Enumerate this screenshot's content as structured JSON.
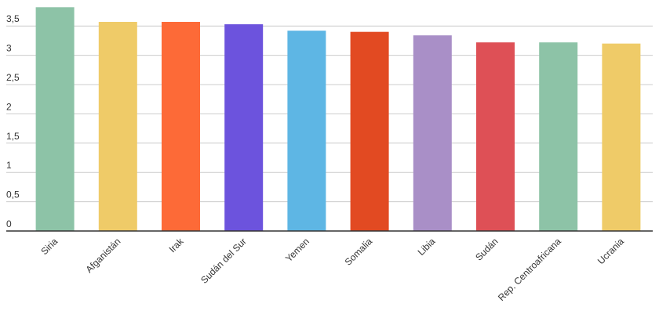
{
  "chart_data": {
    "type": "bar",
    "categories": [
      "Siria",
      "Afganistán",
      "Irak",
      "Sudán del Sur",
      "Yemen",
      "Somalia",
      "Libia",
      "Sudán",
      "Rep. Centroafricana",
      "Ucrania"
    ],
    "values": [
      3.82,
      3.57,
      3.57,
      3.53,
      3.42,
      3.4,
      3.34,
      3.22,
      3.22,
      3.2
    ],
    "colors": [
      "#8dc3a7",
      "#efcb68",
      "#fd6a37",
      "#6c53dd",
      "#5eb6e4",
      "#e24a22",
      "#a98fc7",
      "#de5056",
      "#8dc3a7",
      "#efcb68"
    ],
    "ylim": [
      0,
      3.9
    ],
    "yticks": [
      0,
      {
        "value": 0.5,
        "label": "0,5"
      },
      1,
      {
        "value": 1.5,
        "label": "1,5"
      },
      2,
      {
        "value": 2.5,
        "label": "2,5"
      },
      3,
      {
        "value": 3.5,
        "label": "3,5"
      }
    ],
    "grid": true
  }
}
